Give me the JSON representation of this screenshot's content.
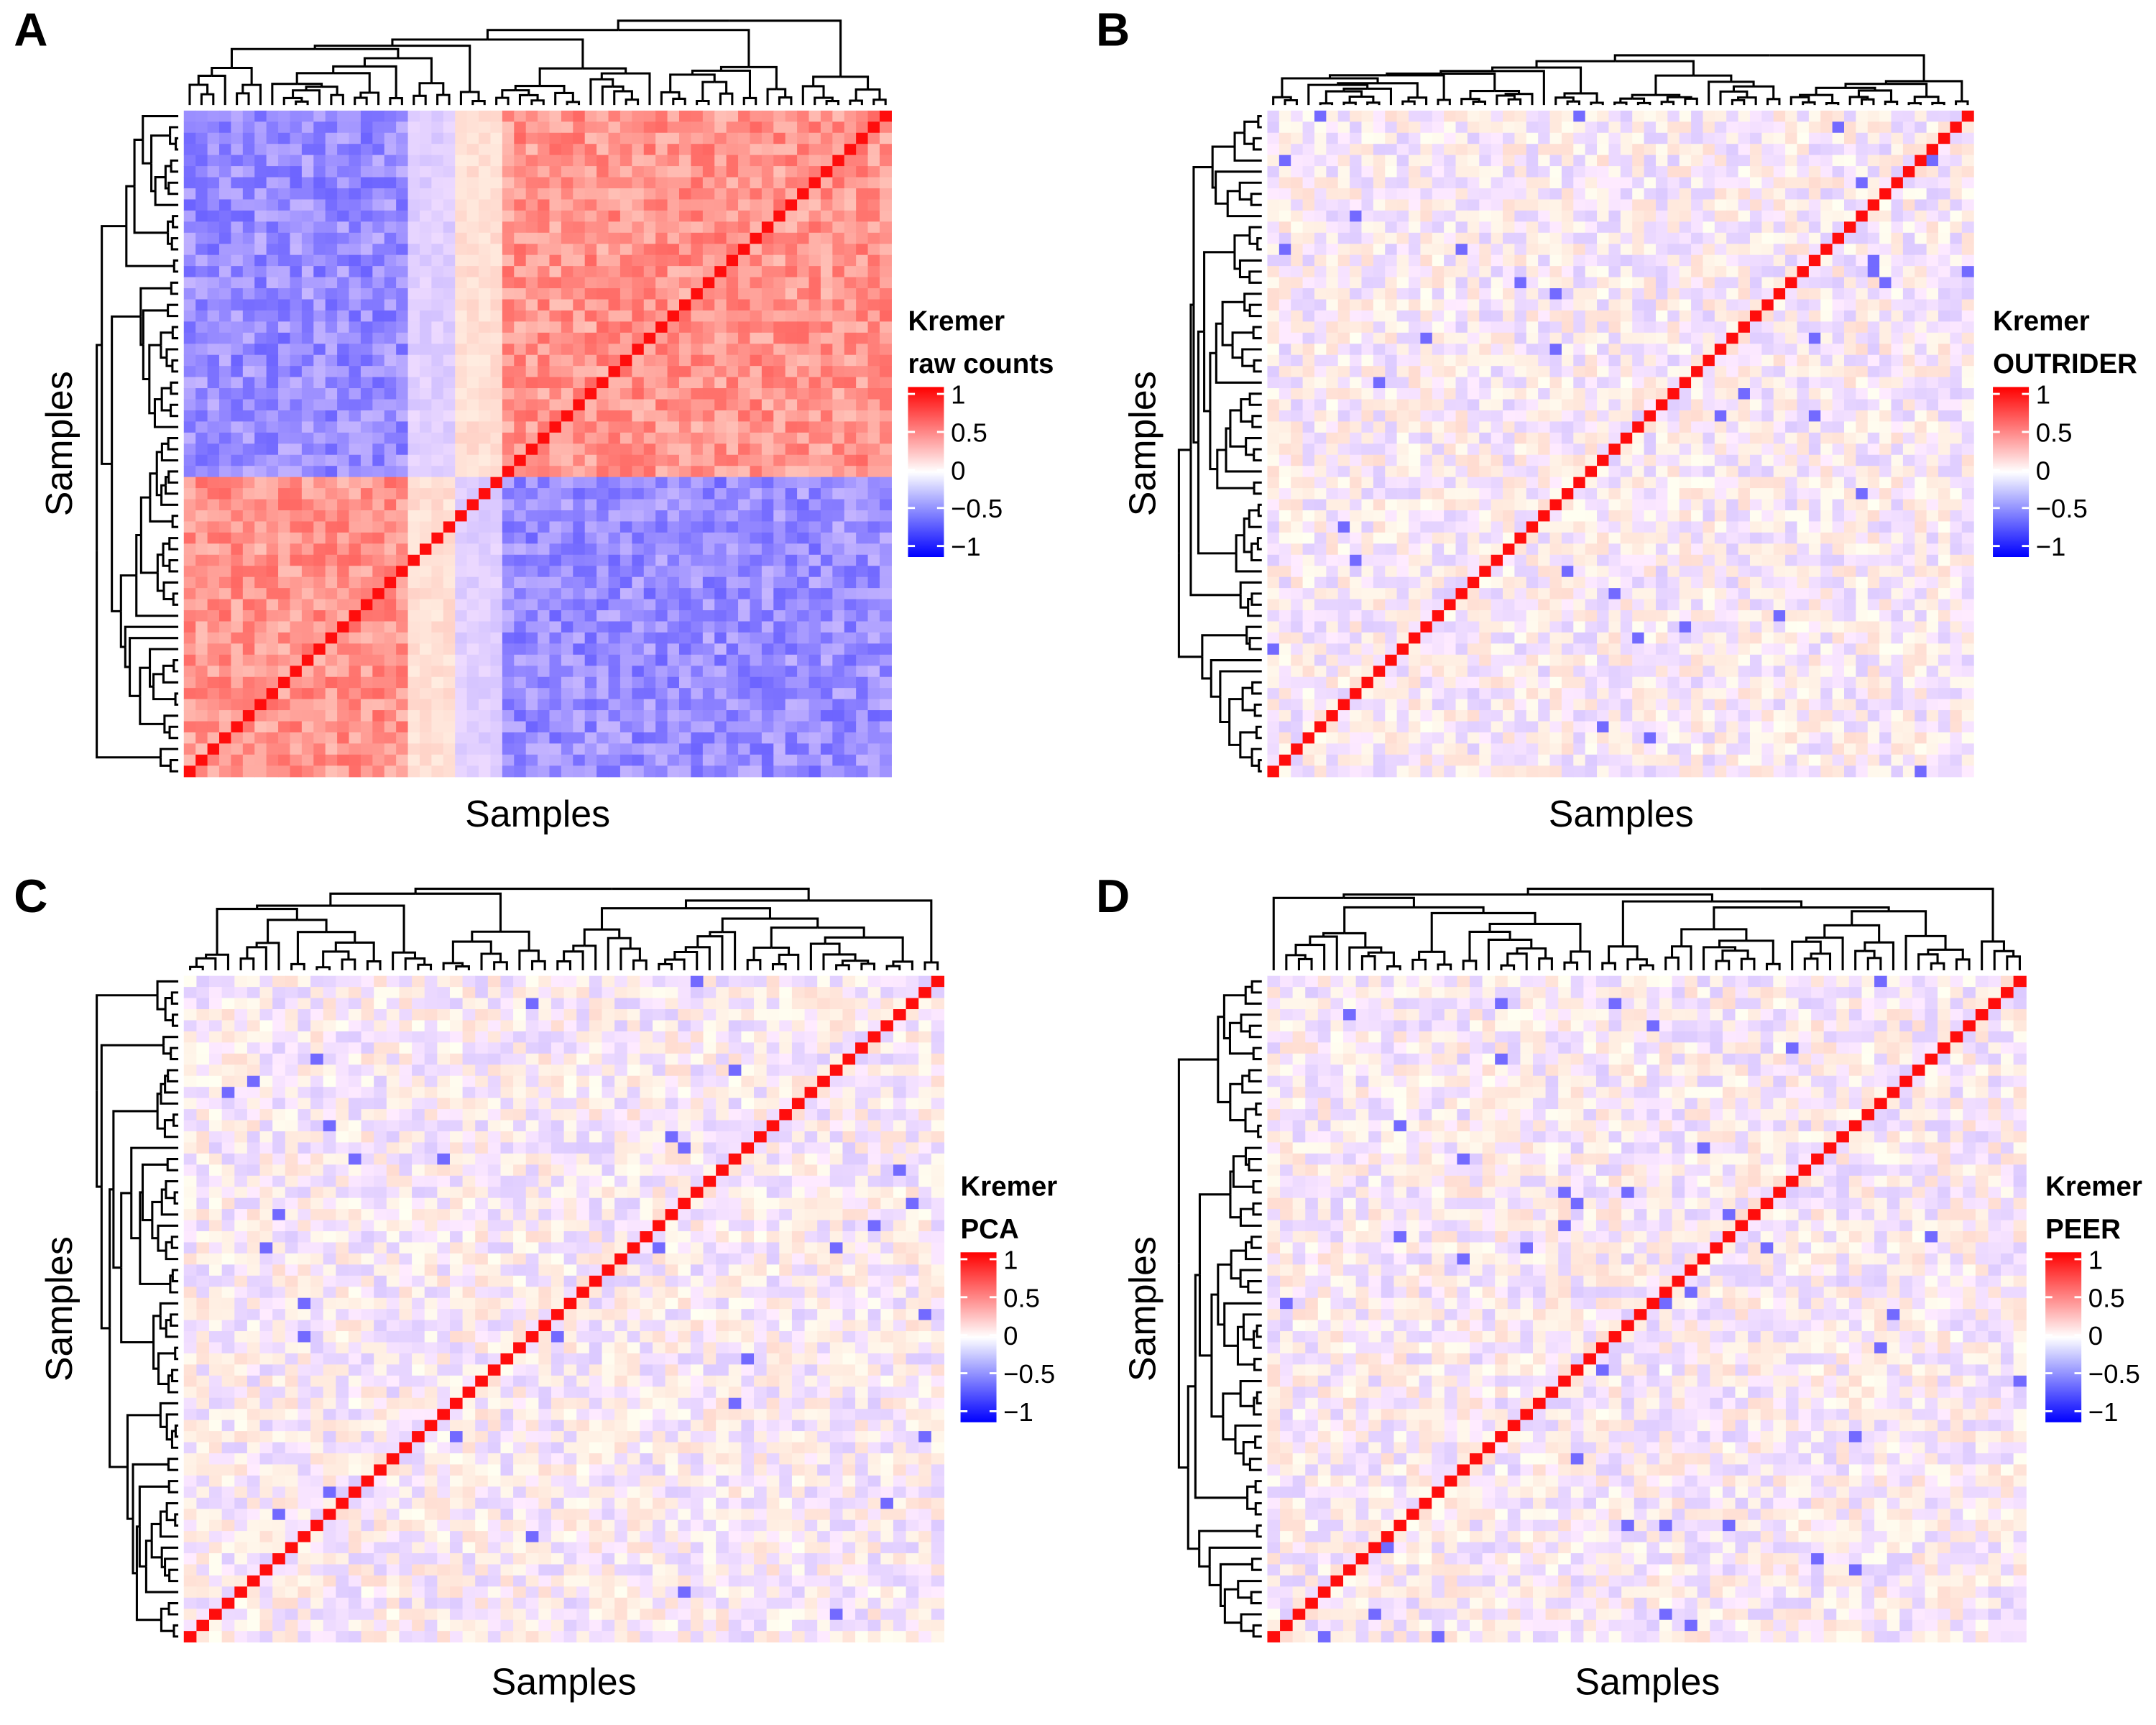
{
  "chart_data": [
    {
      "type": "heatmap",
      "panel_label": "A",
      "legend_title": [
        "Kremer",
        "raw counts"
      ],
      "xlabel": "Samples",
      "ylabel": "Samples",
      "dendrograms": [
        "rows",
        "columns"
      ],
      "pattern": "two large anti-correlated sample clusters; strong red diagonal",
      "color_scale": {
        "min": -1,
        "max": 1,
        "low": "#0000FF",
        "mid": "#FFFFFF",
        "high": "#FF0000",
        "ticks": [
          1,
          0.5,
          0,
          -0.5,
          -1
        ],
        "tick_labels": [
          "1",
          "0.5",
          "0",
          "−0.5",
          "−1"
        ]
      }
    },
    {
      "type": "heatmap",
      "panel_label": "B",
      "legend_title": [
        "Kremer",
        "OUTRIDER"
      ],
      "xlabel": "Samples",
      "ylabel": "Samples",
      "dendrograms": [
        "rows",
        "columns"
      ],
      "pattern": "near-zero off-diagonal correlation; strong red diagonal",
      "color_scale": {
        "min": -1,
        "max": 1,
        "low": "#0000FF",
        "mid": "#FFFFFF",
        "high": "#FF0000",
        "ticks": [
          1,
          0.5,
          0,
          -0.5,
          -1
        ],
        "tick_labels": [
          "1",
          "0.5",
          "0",
          "−0.5",
          "−1"
        ]
      }
    },
    {
      "type": "heatmap",
      "panel_label": "C",
      "legend_title": [
        "Kremer",
        "PCA"
      ],
      "xlabel": "Samples",
      "ylabel": "Samples",
      "dendrograms": [
        "rows",
        "columns"
      ],
      "pattern": "near-zero off-diagonal correlation; strong red diagonal",
      "color_scale": {
        "min": -1,
        "max": 1,
        "low": "#0000FF",
        "mid": "#FFFFFF",
        "high": "#FF0000",
        "ticks": [
          1,
          0.5,
          0,
          -0.5,
          -1
        ],
        "tick_labels": [
          "1",
          "0.5",
          "0",
          "−0.5",
          "−1"
        ]
      }
    },
    {
      "type": "heatmap",
      "panel_label": "D",
      "legend_title": [
        "Kremer",
        "PEER"
      ],
      "xlabel": "Samples",
      "ylabel": "Samples",
      "dendrograms": [
        "rows",
        "columns"
      ],
      "pattern": "near-zero off-diagonal correlation; strong red diagonal",
      "color_scale": {
        "min": -1,
        "max": 1,
        "low": "#0000FF",
        "mid": "#FFFFFF",
        "high": "#FF0000",
        "ticks": [
          1,
          0.5,
          0,
          -0.5,
          -1
        ],
        "tick_labels": [
          "1",
          "0.5",
          "0",
          "−0.5",
          "−1"
        ]
      }
    }
  ]
}
